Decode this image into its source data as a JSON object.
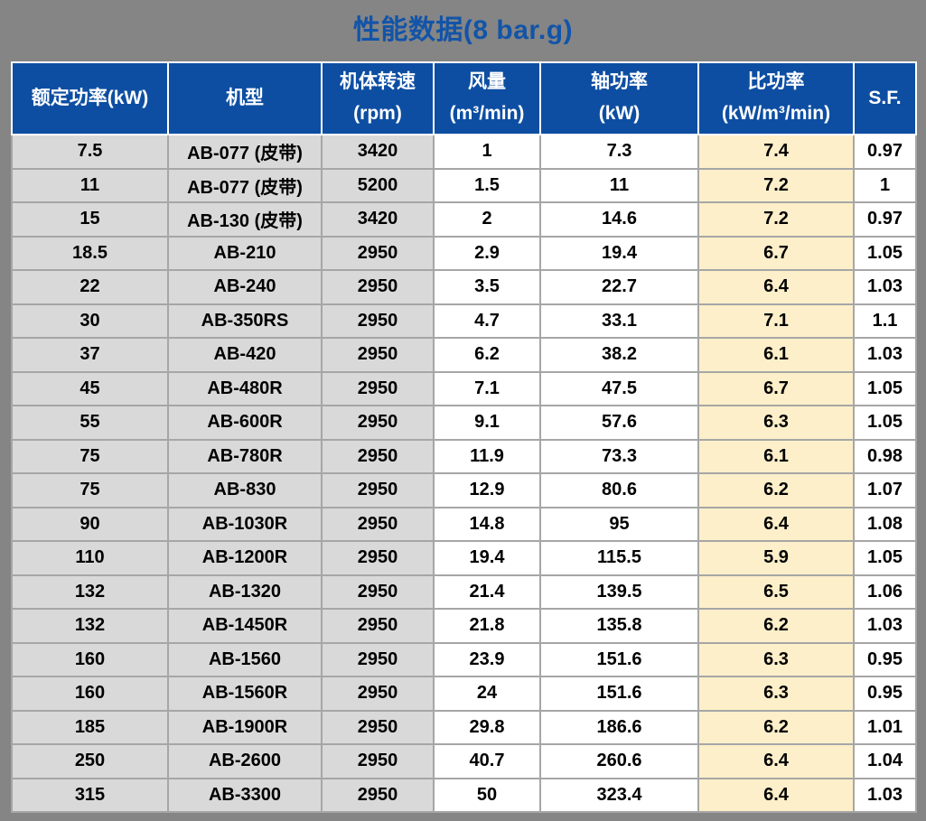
{
  "title": "性能数据(8 bar.g)",
  "colors": {
    "page_bg": "#858585",
    "header_bg": "#0D4EA2",
    "title_color": "#1254A8",
    "row_gray": "#D9D9D9",
    "highlight_cream": "#FCEFC9",
    "grid_line": "#A6A6A6"
  },
  "chart_data": {
    "type": "table",
    "title": "性能数据(8 bar.g)",
    "columns": [
      {
        "id": "rated-power",
        "line1": "额定功率(kW)",
        "line2": ""
      },
      {
        "id": "model",
        "line1": "机型",
        "line2": ""
      },
      {
        "id": "body-speed",
        "line1": "机体转速",
        "line2": "(rpm)"
      },
      {
        "id": "air-flow",
        "line1": "风量",
        "line2": "(m³/min)"
      },
      {
        "id": "shaft-power",
        "line1": "轴功率",
        "line2": "(kW)"
      },
      {
        "id": "specific-power",
        "line1": "比功率",
        "line2": "(kW/m³/min)"
      },
      {
        "id": "service-factor",
        "line1": "S.F.",
        "line2": ""
      }
    ],
    "rows": [
      [
        "7.5",
        "AB-077 (皮带)",
        "3420",
        "1",
        "7.3",
        "7.4",
        "0.97"
      ],
      [
        "11",
        "AB-077 (皮带)",
        "5200",
        "1.5",
        "11",
        "7.2",
        "1"
      ],
      [
        "15",
        "AB-130 (皮带)",
        "3420",
        "2",
        "14.6",
        "7.2",
        "0.97"
      ],
      [
        "18.5",
        "AB-210",
        "2950",
        "2.9",
        "19.4",
        "6.7",
        "1.05"
      ],
      [
        "22",
        "AB-240",
        "2950",
        "3.5",
        "22.7",
        "6.4",
        "1.03"
      ],
      [
        "30",
        "AB-350RS",
        "2950",
        "4.7",
        "33.1",
        "7.1",
        "1.1"
      ],
      [
        "37",
        "AB-420",
        "2950",
        "6.2",
        "38.2",
        "6.1",
        "1.03"
      ],
      [
        "45",
        "AB-480R",
        "2950",
        "7.1",
        "47.5",
        "6.7",
        "1.05"
      ],
      [
        "55",
        "AB-600R",
        "2950",
        "9.1",
        "57.6",
        "6.3",
        "1.05"
      ],
      [
        "75",
        "AB-780R",
        "2950",
        "11.9",
        "73.3",
        "6.1",
        "0.98"
      ],
      [
        "75",
        "AB-830",
        "2950",
        "12.9",
        "80.6",
        "6.2",
        "1.07"
      ],
      [
        "90",
        "AB-1030R",
        "2950",
        "14.8",
        "95",
        "6.4",
        "1.08"
      ],
      [
        "110",
        "AB-1200R",
        "2950",
        "19.4",
        "115.5",
        "5.9",
        "1.05"
      ],
      [
        "132",
        "AB-1320",
        "2950",
        "21.4",
        "139.5",
        "6.5",
        "1.06"
      ],
      [
        "132",
        "AB-1450R",
        "2950",
        "21.8",
        "135.8",
        "6.2",
        "1.03"
      ],
      [
        "160",
        "AB-1560",
        "2950",
        "23.9",
        "151.6",
        "6.3",
        "0.95"
      ],
      [
        "160",
        "AB-1560R",
        "2950",
        "24",
        "151.6",
        "6.3",
        "0.95"
      ],
      [
        "185",
        "AB-1900R",
        "2950",
        "29.8",
        "186.6",
        "6.2",
        "1.01"
      ],
      [
        "250",
        "AB-2600",
        "2950",
        "40.7",
        "260.6",
        "6.4",
        "1.04"
      ],
      [
        "315",
        "AB-3300",
        "2950",
        "50",
        "323.4",
        "6.4",
        "1.03"
      ]
    ],
    "column_background_roles": [
      "gray",
      "gray",
      "gray",
      "white",
      "white",
      "cream",
      "white"
    ]
  }
}
